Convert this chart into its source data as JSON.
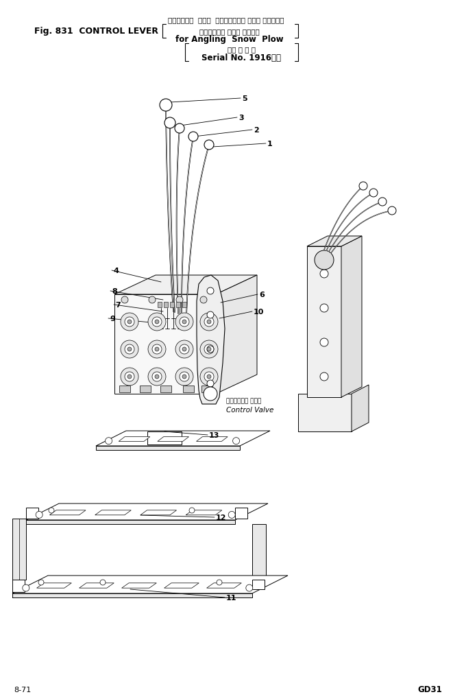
{
  "title_line1": "コントロール  レバー  （アングリング スノウ プラウ用）",
  "title_line2a": "Fig. 831  CONTROL LEVER  ",
  "title_line2b": "(for Angling  Snow  Plow)",
  "title_line3": "（適 用 号 機",
  "title_line4": "Serial No. 1916～）",
  "footer_left": "8-71",
  "footer_right": "GD31",
  "label_cv_jp": "コントロール バルブ",
  "label_cv_en": "Control Valve",
  "bg_color": "#ffffff",
  "lc": "#000000",
  "fig_width": 6.61,
  "fig_height": 10.2,
  "dpi": 100
}
